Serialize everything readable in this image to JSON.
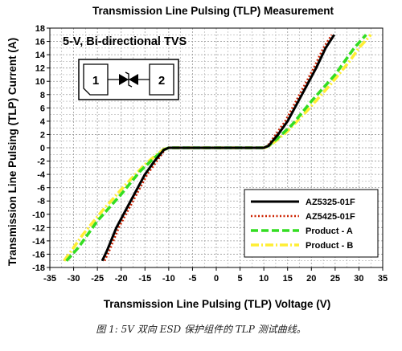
{
  "chart_data": {
    "type": "line",
    "title": "Transmission Line Pulsing (TLP) Measurement",
    "xlabel": "Transmission Line Pulsing (TLP) Voltage (V)",
    "ylabel": "Transmission Line Pulsing (TLP) Current (A)",
    "xlim": [
      -35,
      35
    ],
    "ylim": [
      -18,
      18
    ],
    "x_ticks": [
      -35,
      -30,
      -25,
      -20,
      -15,
      -10,
      -5,
      0,
      5,
      10,
      15,
      20,
      25,
      30,
      35
    ],
    "y_ticks": [
      -18,
      -16,
      -14,
      -12,
      -10,
      -8,
      -6,
      -4,
      -2,
      0,
      2,
      4,
      6,
      8,
      10,
      12,
      14,
      16,
      18
    ],
    "grid": true,
    "legend_position": "bottom-right",
    "annotation": "5-V, Bi-directional TVS",
    "series": [
      {
        "name": "AZ5325-01F",
        "color": "#000000",
        "style": "solid",
        "x": [
          -24,
          -23,
          -21,
          -18,
          -15,
          -13,
          -11,
          -10,
          -5,
          0,
          5,
          10,
          11,
          13,
          15,
          18,
          21,
          23,
          24.8
        ],
        "y": [
          -17,
          -15.5,
          -12,
          -8,
          -4,
          -2,
          -0.3,
          0,
          0,
          0,
          0,
          0,
          0.3,
          2,
          4,
          8,
          12,
          15,
          17
        ]
      },
      {
        "name": "AZ5425-01F",
        "color": "#cc2200",
        "style": "dotted",
        "x": [
          -23.5,
          -22.5,
          -20.5,
          -17.5,
          -14.5,
          -12.5,
          -10.8,
          -10,
          -5,
          0,
          5,
          10,
          10.8,
          12.5,
          14.5,
          17.5,
          20.5,
          22.5,
          24.3
        ],
        "y": [
          -17,
          -15.5,
          -12,
          -8,
          -4,
          -2,
          -0.3,
          0,
          0,
          0,
          0,
          0,
          0.3,
          2,
          4,
          8,
          12,
          15,
          17
        ]
      },
      {
        "name": "Product - A",
        "color": "#33dd22",
        "style": "dashed",
        "x": [
          -31.5,
          -29,
          -25,
          -20,
          -16,
          -13,
          -11,
          -10,
          -5,
          0,
          5,
          10,
          11,
          13,
          16,
          20,
          25,
          29,
          31.5
        ],
        "y": [
          -17,
          -15,
          -11,
          -7,
          -3.5,
          -1.5,
          -0.3,
          0,
          0,
          0,
          0,
          0,
          0.3,
          1.5,
          3.5,
          7,
          11,
          15,
          17
        ]
      },
      {
        "name": "Product - B",
        "color": "#ffee33",
        "style": "dashdot",
        "x": [
          -32,
          -30,
          -28,
          -24,
          -19,
          -15,
          -12.5,
          -11,
          -10,
          -5,
          0,
          5,
          10,
          11,
          12.5,
          15,
          19,
          24,
          28,
          30,
          32.5
        ],
        "y": [
          -17,
          -15,
          -13,
          -9.5,
          -5.5,
          -2.5,
          -1,
          -0.2,
          0,
          0,
          0,
          0,
          0,
          0.2,
          1,
          2.5,
          5.5,
          9.5,
          13,
          15,
          17
        ]
      }
    ]
  },
  "symbol": {
    "pin1": "1",
    "pin2": "2"
  },
  "caption": "图 1: 5V 双向 ESD 保护组件的 TLP 测试曲线。"
}
